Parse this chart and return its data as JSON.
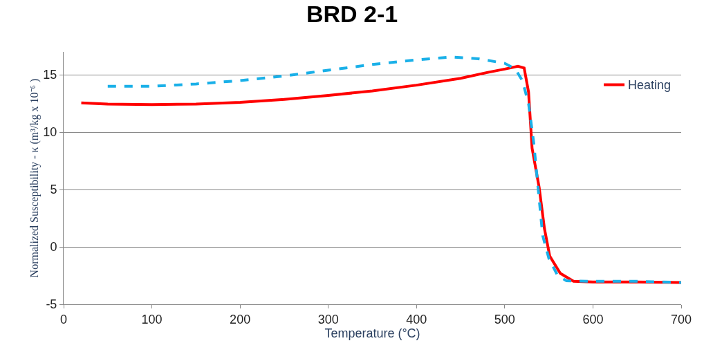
{
  "chart_data": {
    "type": "line",
    "title": "BRD 2-1",
    "xlabel": "Temperature (°C)",
    "ylabel": "Normalized Susceptibility - κ (m³/kg x 10⁻⁶ )",
    "xlim": [
      0,
      700
    ],
    "xticks": [
      0,
      100,
      200,
      300,
      400,
      500,
      600,
      700
    ],
    "ylim": [
      -5,
      17
    ],
    "yticks": [
      -5,
      0,
      5,
      10,
      15
    ],
    "grid": "y",
    "legend": "top right",
    "marker": "none",
    "series": [
      {
        "name": "Heating",
        "color": "#ff0000",
        "line_style": "solid",
        "x": [
          20,
          50,
          100,
          150,
          200,
          250,
          300,
          350,
          400,
          450,
          480,
          500,
          515,
          522,
          527,
          531,
          539,
          545,
          551,
          563,
          578,
          600,
          650,
          700
        ],
        "values": [
          12.55,
          12.45,
          12.4,
          12.45,
          12.6,
          12.85,
          13.2,
          13.6,
          14.1,
          14.7,
          15.2,
          15.5,
          15.75,
          15.6,
          13.5,
          8.6,
          5.2,
          1.6,
          -0.8,
          -2.3,
          -3.0,
          -3.05,
          -3.05,
          -3.1
        ]
      },
      {
        "color": "#1ab0e8",
        "line_style": "dashed",
        "x": [
          50,
          100,
          150,
          200,
          250,
          300,
          350,
          400,
          440,
          470,
          500,
          512,
          520,
          527,
          533,
          538,
          543,
          550,
          560,
          570,
          600,
          650,
          700
        ],
        "values": [
          14.0,
          14.0,
          14.2,
          14.5,
          14.9,
          15.4,
          15.9,
          16.3,
          16.55,
          16.4,
          16.0,
          15.5,
          14.5,
          12.5,
          9.0,
          5.0,
          1.0,
          -1.0,
          -2.5,
          -2.95,
          -3.0,
          -3.0,
          -3.1
        ]
      }
    ]
  }
}
